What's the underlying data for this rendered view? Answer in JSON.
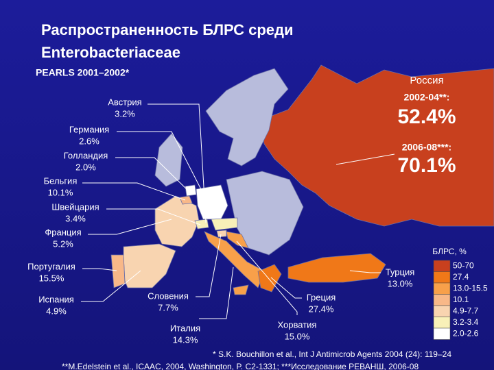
{
  "title_lines": [
    "Распространенность БЛРС среди",
    "Enterobacteriaceae"
  ],
  "subtitle": "PEARLS 2001–2002*",
  "countries": [
    {
      "name": "Австрия",
      "value": "3.2%"
    },
    {
      "name": "Германия",
      "value": "2.6%"
    },
    {
      "name": "Голландия",
      "value": "2.0%"
    },
    {
      "name": "Бельгия",
      "value": "10.1%"
    },
    {
      "name": "Швейцария",
      "value": "3.4%"
    },
    {
      "name": "Франция",
      "value": "5.2%"
    },
    {
      "name": "Португалия",
      "value": "15.5%"
    },
    {
      "name": "Испания",
      "value": "4.9%"
    },
    {
      "name": "Словения",
      "value": "7.7%"
    },
    {
      "name": "Италия",
      "value": "14.3%"
    },
    {
      "name": "Хорватия",
      "value": "15.0%"
    },
    {
      "name": "Греция",
      "value": "27.4%"
    },
    {
      "name": "Турция",
      "value": "13.0%"
    }
  ],
  "russia": {
    "name": "Россия",
    "period1": "2002-04**:",
    "value1": "52.4%",
    "period2": "2006-08***:",
    "value2": "70.1%"
  },
  "legend": {
    "title": "БЛРС, %",
    "items": [
      {
        "label": "50-70",
        "color": "#c8401e"
      },
      {
        "label": "27.4",
        "color": "#f07818"
      },
      {
        "label": "13.0-15.5",
        "color": "#f8a04a"
      },
      {
        "label": "10.1",
        "color": "#f8b888"
      },
      {
        "label": "4.9-7.7",
        "color": "#f8d4b0"
      },
      {
        "label": "3.2-3.4",
        "color": "#f8f0b8"
      },
      {
        "label": "2.0-2.6",
        "color": "#ffffff"
      }
    ]
  },
  "footnotes": [
    "* S.K. Bouchillon et al., Int J Antimicrob Agents 2004 (24): 119–24",
    "**M.Edelstein et al., ICAAC, 2004, Washington, P. C2-1331;   ***Исследование РЕВАНШ, 2006-08"
  ]
}
